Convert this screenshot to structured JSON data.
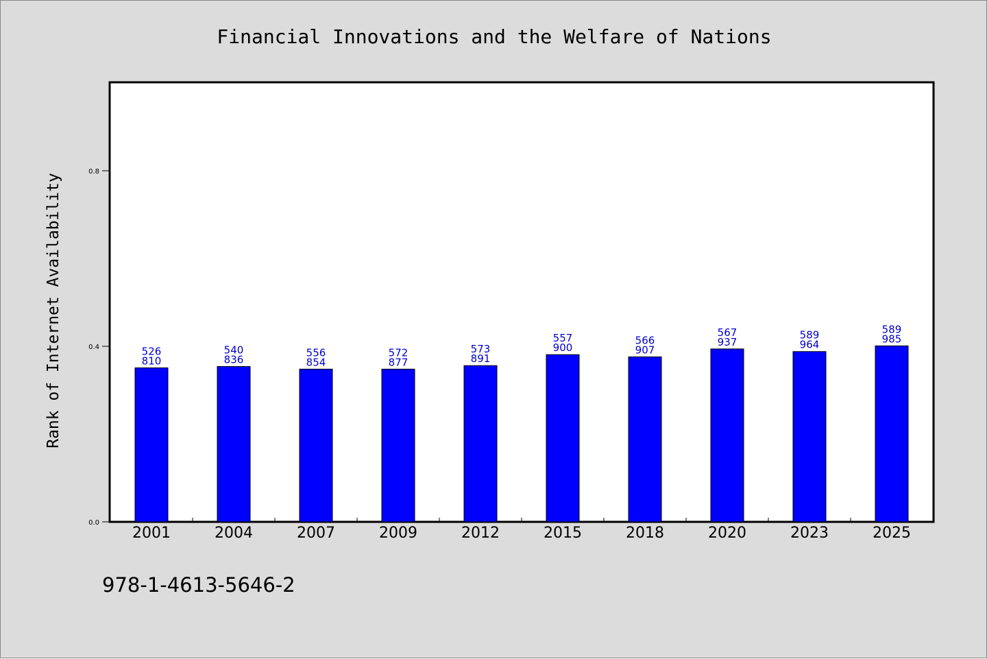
{
  "chart_data": {
    "type": "bar",
    "title": "Financial Innovations and the Welfare of Nations",
    "xlabel": "",
    "ylabel": "Rank of Internet Availability",
    "categories": [
      "2001",
      "2004",
      "2007",
      "2009",
      "2012",
      "2015",
      "2018",
      "2020",
      "2023",
      "2025"
    ],
    "values": [
      0.351,
      0.354,
      0.348,
      0.348,
      0.356,
      0.381,
      0.376,
      0.394,
      0.388,
      0.401
    ],
    "bar_labels": [
      [
        "526",
        "810"
      ],
      [
        "540",
        "836"
      ],
      [
        "556",
        "854"
      ],
      [
        "572",
        "877"
      ],
      [
        "573",
        "891"
      ],
      [
        "557",
        "900"
      ],
      [
        "566",
        "907"
      ],
      [
        "567",
        "937"
      ],
      [
        "589",
        "964"
      ],
      [
        "589",
        "985"
      ]
    ],
    "yticks": [
      0.0,
      0.4,
      0.8
    ],
    "ytick_labels": [
      "0.0",
      "0.4",
      "0.8"
    ],
    "ylim": [
      0,
      1.0
    ],
    "grid": false,
    "bar_color": "#0000ff",
    "label_color": "#0000cc"
  },
  "footer": {
    "isbn": "978-1-4613-5646-2"
  },
  "colors": {
    "background": "#dcdcdc",
    "plot_background": "#ffffff"
  }
}
